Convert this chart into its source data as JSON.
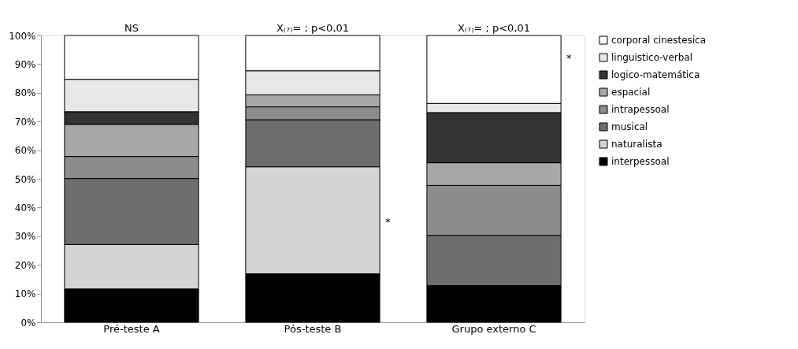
{
  "chart_data": {
    "type": "bar",
    "stacked": true,
    "categories": [
      "Pré-teste A",
      "Pós-teste B",
      "Grupo externo  C"
    ],
    "series": [
      {
        "name": "interpessoal",
        "color": "#000000",
        "values": [
          11.6,
          16.9,
          12.8
        ]
      },
      {
        "name": "naturalista",
        "color": "#d4d4d4",
        "values": [
          15.5,
          37.3,
          0
        ]
      },
      {
        "name": "musical",
        "color": "#6e6e6e",
        "values": [
          23.0,
          16.4,
          17.5
        ]
      },
      {
        "name": "intrapessoal",
        "color": "#8c8c8c",
        "values": [
          7.7,
          4.5,
          17.4
        ]
      },
      {
        "name": "espacial",
        "color": "#a8a8a8",
        "values": [
          11.2,
          4.2,
          7.9
        ]
      },
      {
        "name": "logico-matemática",
        "color": "#333333",
        "values": [
          4.4,
          0,
          17.5
        ]
      },
      {
        "name": "linguistico-verbal",
        "color": "#e8e8e8",
        "values": [
          11.3,
          8.4,
          3.2
        ]
      },
      {
        "name": "corporal cinestesica",
        "color": "#ffffff",
        "values": [
          15.3,
          12.3,
          23.7
        ]
      }
    ],
    "ylim": [
      0,
      100
    ],
    "yticks": [
      {
        "value": 0,
        "label": "0%"
      },
      {
        "value": 10,
        "label": "10%"
      },
      {
        "value": 20,
        "label": "20%"
      },
      {
        "value": 30,
        "label": "30%"
      },
      {
        "value": 40,
        "label": "40%"
      },
      {
        "value": 50,
        "label": "50%"
      },
      {
        "value": 60,
        "label": "60%"
      },
      {
        "value": 70,
        "label": "70%"
      },
      {
        "value": 80,
        "label": "80%"
      },
      {
        "value": 90,
        "label": "90%"
      },
      {
        "value": 100,
        "label": "100%"
      }
    ],
    "legend": "right",
    "grid": false,
    "annotations": [
      {
        "text": "NS",
        "x": "Pré-teste A",
        "y": 100
      },
      {
        "text": "X₍₇₎= ; p<0,01",
        "x": "Pós-teste B",
        "y": 100
      },
      {
        "text": "X₍₇₎= ; p<0,01",
        "x": "Grupo externo  C",
        "y": 100
      },
      "*",
      "*"
    ]
  }
}
